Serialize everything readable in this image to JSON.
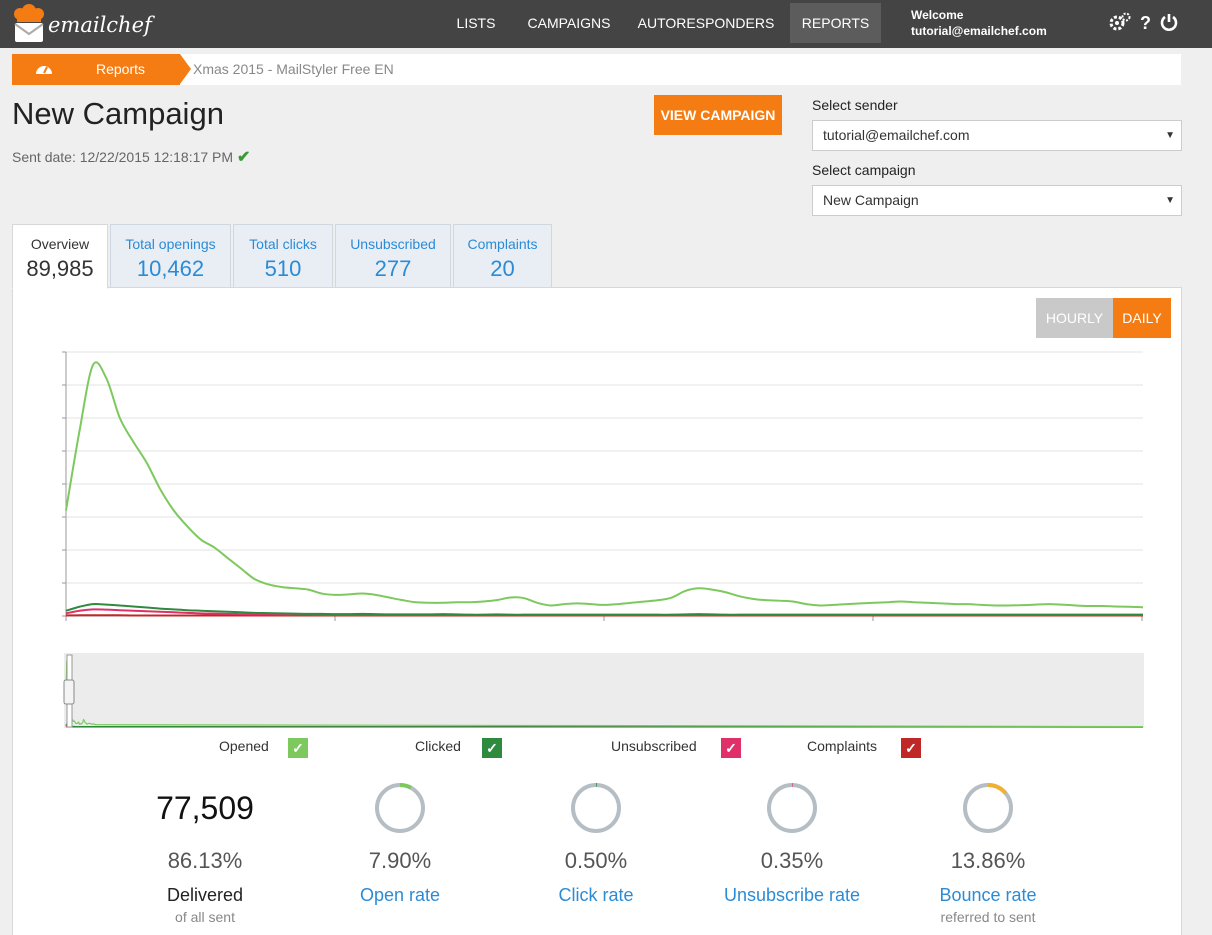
{
  "brand": {
    "name": "emailchef"
  },
  "nav": {
    "items": [
      "LISTS",
      "CAMPAIGNS",
      "AUTORESPONDERS",
      "REPORTS"
    ],
    "active": "REPORTS"
  },
  "user": {
    "welcome": "Welcome",
    "email": "tutorial@emailchef.com"
  },
  "top_icons": [
    "settings-icon",
    "help-icon",
    "power-icon"
  ],
  "breadcrumb": {
    "home_icon": "dashboard-icon",
    "reports": "Reports",
    "current": "Xmas 2015 - MailStyler Free EN"
  },
  "campaign": {
    "title": "New Campaign",
    "sent_date": "Sent date: 12/22/2015 12:18:17 PM",
    "view_button": "VIEW CAMPAIGN"
  },
  "selectors": {
    "sender_label": "Select sender",
    "sender_value": "tutorial@emailchef.com",
    "campaign_label": "Select campaign",
    "campaign_value": "New Campaign"
  },
  "tabs": [
    {
      "label": "Overview",
      "value": "89,985"
    },
    {
      "label": "Total openings",
      "value": "10,462"
    },
    {
      "label": "Total clicks",
      "value": "510"
    },
    {
      "label": "Unsubscribed",
      "value": "277"
    },
    {
      "label": "Complaints",
      "value": "20"
    }
  ],
  "toggle": {
    "hourly": "HOURLY",
    "daily": "DAILY",
    "active": "DAILY"
  },
  "colors": {
    "accent": "#f57c12",
    "link": "#2b8bd6",
    "opened": "#7dc95e",
    "clicked": "#2e8b3e",
    "unsubscribed": "#e0306a",
    "complaints": "#c02828",
    "bounce": "#f0b030"
  },
  "chart_data": {
    "type": "line",
    "title": "",
    "xlabel": "",
    "ylabel": "",
    "grid": true,
    "legend": "bottom",
    "x": [
      0,
      1,
      2,
      3,
      4,
      5,
      6,
      7,
      8,
      9,
      10,
      11,
      12,
      13,
      14,
      15,
      16,
      17,
      18,
      19,
      20,
      21,
      22,
      23,
      24,
      25,
      26,
      27,
      28,
      29,
      30,
      31,
      32,
      33,
      34,
      35,
      36,
      37,
      38,
      39,
      40,
      41,
      42,
      43,
      44,
      45,
      46,
      47,
      48,
      49,
      50,
      51,
      52,
      53,
      54,
      55,
      56,
      57,
      58,
      59,
      60,
      61,
      62,
      63,
      64,
      65,
      66,
      67,
      68,
      69,
      70,
      71,
      72,
      73,
      74,
      75,
      76,
      77,
      78,
      79,
      80
    ],
    "ylim": [
      0,
      100
    ],
    "series": [
      {
        "name": "Opened",
        "color": "#7dc95e",
        "values": [
          40,
          70,
          95,
          90,
          75,
          66,
          58,
          48,
          40,
          34,
          29,
          26,
          22,
          18,
          14,
          12,
          11,
          10.5,
          10,
          8.5,
          8,
          8.2,
          8.5,
          8,
          7,
          6,
          5.2,
          5,
          5,
          5.2,
          5.2,
          5.5,
          6,
          7,
          6.8,
          5,
          4,
          4.5,
          4.8,
          4.5,
          4.2,
          4.5,
          5,
          5.5,
          6,
          7,
          9.5,
          10.5,
          10,
          9,
          7.5,
          6.5,
          6,
          5.8,
          5.5,
          4.5,
          4,
          4.2,
          4.5,
          4.8,
          5,
          5.2,
          5.5,
          5.2,
          5,
          4.8,
          4.5,
          4.5,
          4.2,
          4,
          4,
          4.1,
          4.3,
          4.5,
          4.3,
          4,
          3.8,
          3.8,
          3.6,
          3.5,
          3.3
        ]
      },
      {
        "name": "Clicked",
        "color": "#2e8b3e",
        "values": [
          2,
          3.5,
          4.5,
          4.3,
          4,
          3.6,
          3.2,
          2.8,
          2.5,
          2.2,
          2,
          1.8,
          1.6,
          1.4,
          1.2,
          1.1,
          1,
          0.9,
          0.8,
          0.8,
          0.7,
          0.7,
          0.8,
          0.7,
          0.6,
          0.6,
          0.6,
          0.6,
          0.7,
          0.6,
          0.5,
          0.5,
          0.6,
          0.5,
          0.5,
          0.5,
          0.5,
          0.5,
          0.5,
          0.5,
          0.5,
          0.5,
          0.5,
          0.5,
          0.5,
          0.5,
          0.6,
          0.7,
          0.6,
          0.5,
          0.5,
          0.5,
          0.5,
          0.5,
          0.5,
          0.5,
          0.5,
          0.5,
          0.5,
          0.5,
          0.5,
          0.5,
          0.5,
          0.5,
          0.5,
          0.5,
          0.5,
          0.5,
          0.5,
          0.5,
          0.5,
          0.5,
          0.5,
          0.5,
          0.5,
          0.5,
          0.5,
          0.5,
          0.5,
          0.5,
          0.5
        ]
      },
      {
        "name": "Unsubscribed",
        "color": "#e0306a",
        "values": [
          1,
          2,
          2.5,
          2.4,
          2.2,
          2,
          1.8,
          1.6,
          1.4,
          1.2,
          1,
          0.9,
          0.8,
          0.7,
          0.6,
          0.6,
          0.5,
          0.5,
          0.5,
          0.4,
          0.4,
          0.4,
          0.4,
          0.4,
          0.4,
          0.4,
          0.4,
          0.4,
          0.4,
          0.4,
          0.4,
          0.4,
          0.4,
          0.4,
          0.4,
          0.4,
          0.4,
          0.4,
          0.4,
          0.4,
          0.4,
          0.4,
          0.4,
          0.4,
          0.4,
          0.4,
          0.4,
          0.4,
          0.4,
          0.4,
          0.4,
          0.4,
          0.4,
          0.4,
          0.4,
          0.4,
          0.4,
          0.4,
          0.4,
          0.4,
          0.4,
          0.4,
          0.4,
          0.4,
          0.4,
          0.4,
          0.4,
          0.4,
          0.4,
          0.4,
          0.4,
          0.4,
          0.4,
          0.4,
          0.4,
          0.4,
          0.4,
          0.4,
          0.4,
          0.4,
          0.4
        ]
      },
      {
        "name": "Complaints",
        "color": "#c02828",
        "values": [
          0.2,
          0.3,
          0.3,
          0.3,
          0.3,
          0.2,
          0.2,
          0.2,
          0.2,
          0.2,
          0.2,
          0.2,
          0.2,
          0.2,
          0.2,
          0.2,
          0.2,
          0.2,
          0.2,
          0.2,
          0.2,
          0.2,
          0.2,
          0.2,
          0.2,
          0.2,
          0.2,
          0.2,
          0.2,
          0.2,
          0.2,
          0.2,
          0.2,
          0.2,
          0.2,
          0.2,
          0.2,
          0.2,
          0.2,
          0.2,
          0.2,
          0.2,
          0.2,
          0.2,
          0.2,
          0.2,
          0.2,
          0.2,
          0.2,
          0.2,
          0.2,
          0.2,
          0.2,
          0.2,
          0.2,
          0.2,
          0.2,
          0.2,
          0.2,
          0.2,
          0.2,
          0.2,
          0.2,
          0.2,
          0.2,
          0.2,
          0.2,
          0.2,
          0.2,
          0.2,
          0.2,
          0.2,
          0.2,
          0.2,
          0.2,
          0.2,
          0.2,
          0.2,
          0.2,
          0.2,
          0.2
        ]
      }
    ]
  },
  "legend": [
    {
      "label": "Opened",
      "color": "#7dc95e",
      "checked": true
    },
    {
      "label": "Clicked",
      "color": "#2e8b3e",
      "checked": true
    },
    {
      "label": "Unsubscribed",
      "color": "#e0306a",
      "checked": true
    },
    {
      "label": "Complaints",
      "color": "#c02828",
      "checked": true
    }
  ],
  "stats": {
    "delivered_count": "77,509",
    "delivered_pct": "86.13%",
    "delivered_label": "Delivered",
    "delivered_sub": "of all sent",
    "open_pct": "7.90%",
    "open_label": "Open rate",
    "open_fraction": 0.079,
    "click_pct": "0.50%",
    "click_label": "Click rate",
    "click_fraction": 0.005,
    "unsub_pct": "0.35%",
    "unsub_label": "Unsubscribe rate",
    "unsub_fraction": 0.0035,
    "bounce_pct": "13.86%",
    "bounce_label": "Bounce rate",
    "bounce_sub": "referred to sent",
    "bounce_fraction": 0.1386
  }
}
